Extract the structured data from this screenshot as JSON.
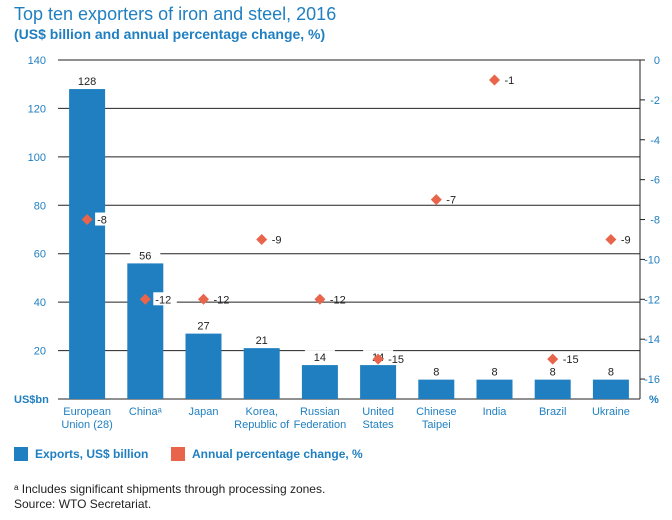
{
  "title": "Top ten exporters of iron and steel, 2016",
  "subtitle": "(US$ billion and annual percentage change, %)",
  "left_axis_unit": "US$bn",
  "right_axis_unit": "%",
  "legend": {
    "exports": "Exports, US$ billion",
    "change": "Annual percentage change, %"
  },
  "footnote": "ᵃ Includes significant shipments through processing zones.",
  "source": "Source: WTO Secretariat.",
  "colors": {
    "bar": "#1f7fc0",
    "marker": "#e8644a",
    "axis_text": "#1f7fc0",
    "grid": "#222222"
  },
  "chart_data": {
    "type": "bar",
    "categories": [
      [
        "European",
        "Union (28)"
      ],
      [
        "Chinaᵃ"
      ],
      [
        "Japan"
      ],
      [
        "Korea,",
        "Republic of"
      ],
      [
        "Russian",
        "Federation"
      ],
      [
        "United",
        "States"
      ],
      [
        "Chinese",
        "Taipei"
      ],
      [
        "India"
      ],
      [
        "Brazil"
      ],
      [
        "Ukraine"
      ]
    ],
    "series": [
      {
        "name": "Exports, US$ billion",
        "axis": "left",
        "values": [
          128,
          56,
          27,
          21,
          14,
          14,
          8,
          8,
          8,
          8
        ]
      },
      {
        "name": "Annual percentage change, %",
        "axis": "right",
        "values": [
          -8,
          -12,
          -12,
          -9,
          -12,
          -15,
          -7,
          -1,
          -15,
          -9
        ]
      }
    ],
    "data_labels_bar": [
      "128",
      "56",
      "27",
      "21",
      "14",
      "14",
      "8",
      "8",
      "8",
      "8"
    ],
    "data_labels_marker": [
      "-8",
      "-12",
      "-12",
      "-9",
      "-12",
      "-15",
      "-7",
      "-1",
      "-15",
      "-9"
    ],
    "left_ylim": [
      0,
      140
    ],
    "left_ticks": [
      20,
      40,
      60,
      80,
      100,
      120,
      140
    ],
    "right_ylim": [
      -17,
      0
    ],
    "right_ticks": [
      0,
      -2,
      -4,
      -6,
      -8,
      -10,
      -12,
      -14,
      -16
    ],
    "grid": true
  }
}
